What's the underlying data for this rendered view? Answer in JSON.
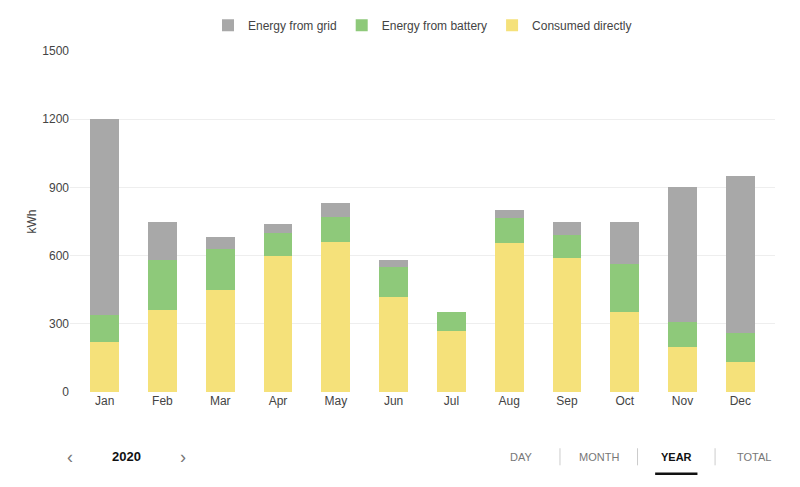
{
  "chart_data": {
    "type": "bar",
    "stacked": true,
    "y_label": "kWh",
    "categories": [
      "Jan",
      "Feb",
      "Mar",
      "Apr",
      "May",
      "Jun",
      "Jul",
      "Aug",
      "Sep",
      "Oct",
      "Nov",
      "Dec"
    ],
    "series": [
      {
        "name": "Consumed directly",
        "color": "#f5e17a",
        "values": [
          220,
          360,
          450,
          600,
          660,
          420,
          270,
          655,
          590,
          350,
          200,
          130
        ]
      },
      {
        "name": "Energy from battery",
        "color": "#8ec97a",
        "values": [
          120,
          220,
          180,
          100,
          110,
          130,
          80,
          110,
          100,
          215,
          110,
          130
        ]
      },
      {
        "name": "Energy from grid",
        "color": "#a8a8a8",
        "values": [
          860,
          170,
          50,
          40,
          60,
          30,
          0,
          35,
          60,
          185,
          590,
          690
        ]
      }
    ],
    "ylim": [
      0,
      1500
    ],
    "yticks": [
      0,
      300,
      600,
      900,
      1200,
      1500
    ],
    "grid": true,
    "legend": "top",
    "annotations": [
      "‹",
      "2020",
      "›",
      "DAY",
      "MONTH",
      "YEAR",
      "TOTAL"
    ]
  }
}
